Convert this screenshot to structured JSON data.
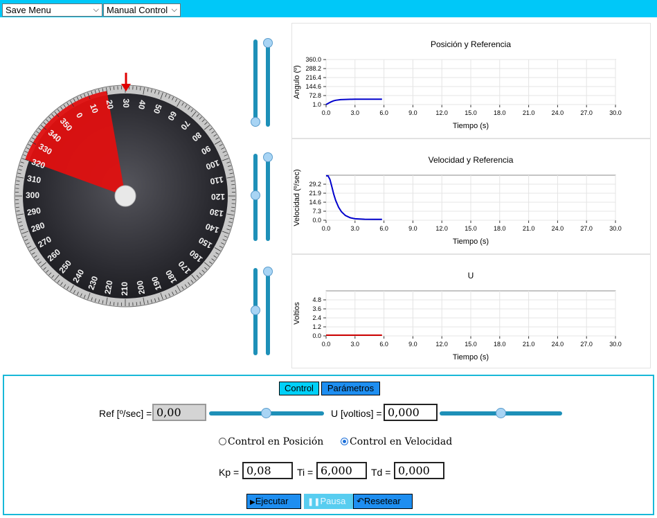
{
  "topbar": {
    "save_menu": "Save Menu",
    "control_menu": "Manual Control",
    "color": "#00c8f8"
  },
  "dial": {
    "ticks": [
      "0",
      "10",
      "20",
      "30",
      "40",
      "50",
      "60",
      "70",
      "80",
      "90",
      "100",
      "110",
      "120",
      "130",
      "140",
      "150",
      "160",
      "170",
      "180",
      "190",
      "200",
      "210",
      "220",
      "230",
      "240",
      "250",
      "260",
      "270",
      "280",
      "290",
      "300",
      "310",
      "320",
      "330",
      "340",
      "350"
    ],
    "pointer_label": "down-arrow-icon",
    "pointer_angle_deg": 30
  },
  "plots": [
    {
      "title": "Posición y Referencia",
      "ylabel": "Angulo (º)",
      "xlabel": "Tiempo (s)",
      "yticks": [
        "360.0",
        "288.2",
        "216.4",
        "144.6",
        "72.8",
        "1.0"
      ],
      "xticks": [
        "0.0",
        "3.0",
        "6.0",
        "9.0",
        "12.0",
        "15.0",
        "18.0",
        "21.0",
        "24.0",
        "27.0",
        "30.0"
      ]
    },
    {
      "title": "Velocidad y Referencia",
      "ylabel": "Velocidad (º/sec)",
      "xlabel": "Tiempo (s)",
      "yticks": [
        "29.2",
        "21.9",
        "14.6",
        "7.3",
        "0.0"
      ],
      "xticks": [
        "0.0",
        "3.0",
        "6.0",
        "9.0",
        "12.0",
        "15.0",
        "18.0",
        "21.0",
        "24.0",
        "27.0",
        "30.0"
      ]
    },
    {
      "title": "U",
      "ylabel": "Voltios",
      "xlabel": "Tiempo (s)",
      "yticks": [
        "4.8",
        "3.6",
        "2.4",
        "1.2",
        "0.0"
      ],
      "xticks": [
        "0.0",
        "3.0",
        "6.0",
        "9.0",
        "12.0",
        "15.0",
        "18.0",
        "21.0",
        "24.0",
        "27.0",
        "30.0"
      ]
    }
  ],
  "chart_data": [
    {
      "type": "line",
      "title": "Posición y Referencia",
      "xlabel": "Tiempo (s)",
      "ylabel": "Angulo (º)",
      "xlim": [
        0,
        30
      ],
      "ylim": [
        1,
        360
      ],
      "grid": true,
      "series": [
        {
          "color": "#0000cc",
          "x": [
            0,
            0.25,
            0.5,
            0.75,
            1,
            1.5,
            2,
            2.5,
            3,
            4,
            5,
            5.8
          ],
          "y": [
            1,
            12,
            22,
            30,
            35,
            40,
            42,
            43,
            43.5,
            43.8,
            44,
            44
          ]
        }
      ]
    },
    {
      "type": "line",
      "title": "Velocidad y Referencia",
      "xlabel": "Tiempo (s)",
      "ylabel": "Velocidad (º/sec)",
      "xlim": [
        0,
        30
      ],
      "ylim": [
        0,
        36.5
      ],
      "grid": true,
      "series": [
        {
          "color": "#0000cc",
          "x": [
            0,
            0.2,
            0.4,
            0.6,
            0.8,
            1,
            1.3,
            1.6,
            2,
            2.5,
            3,
            4,
            5,
            5.8
          ],
          "y": [
            36,
            36,
            33,
            27,
            21,
            16,
            10.5,
            6.8,
            3.8,
            2,
            1.2,
            0.8,
            0.7,
            0.7
          ]
        }
      ]
    },
    {
      "type": "line",
      "title": "U",
      "xlabel": "Tiempo (s)",
      "ylabel": "Voltios",
      "xlim": [
        0,
        30
      ],
      "ylim": [
        0,
        5.4
      ],
      "grid": true,
      "series": [
        {
          "color": "#cc0000",
          "x": [
            0,
            5.8
          ],
          "y": [
            0.08,
            0.08
          ]
        }
      ]
    }
  ],
  "vsliders": [
    {
      "name": "position-slider",
      "value": 0.0
    },
    {
      "name": "velocity-slider",
      "value": 0.5
    },
    {
      "name": "u-slider",
      "value": 0.5
    }
  ],
  "panel": {
    "tab_control": "Control",
    "tab_params": "Parámetros",
    "ref_label": "Ref [º/sec] =",
    "ref_value": "0,00",
    "ref_slider": 0.5,
    "u_label": "U [voltios] =",
    "u_value": "0,000",
    "u_slider": 0.5,
    "radio_position": "Control en Posición",
    "radio_velocity": "Control en Velocidad",
    "selected": "velocity",
    "kp_label": "Kp =",
    "kp_value": "0,08",
    "ti_label": "Ti =",
    "ti_value": "6,000",
    "td_label": "Td =",
    "td_value": "0,000",
    "btn_run": "Ejecutar",
    "btn_pause": "Pausa",
    "btn_reset": "Resetear"
  }
}
